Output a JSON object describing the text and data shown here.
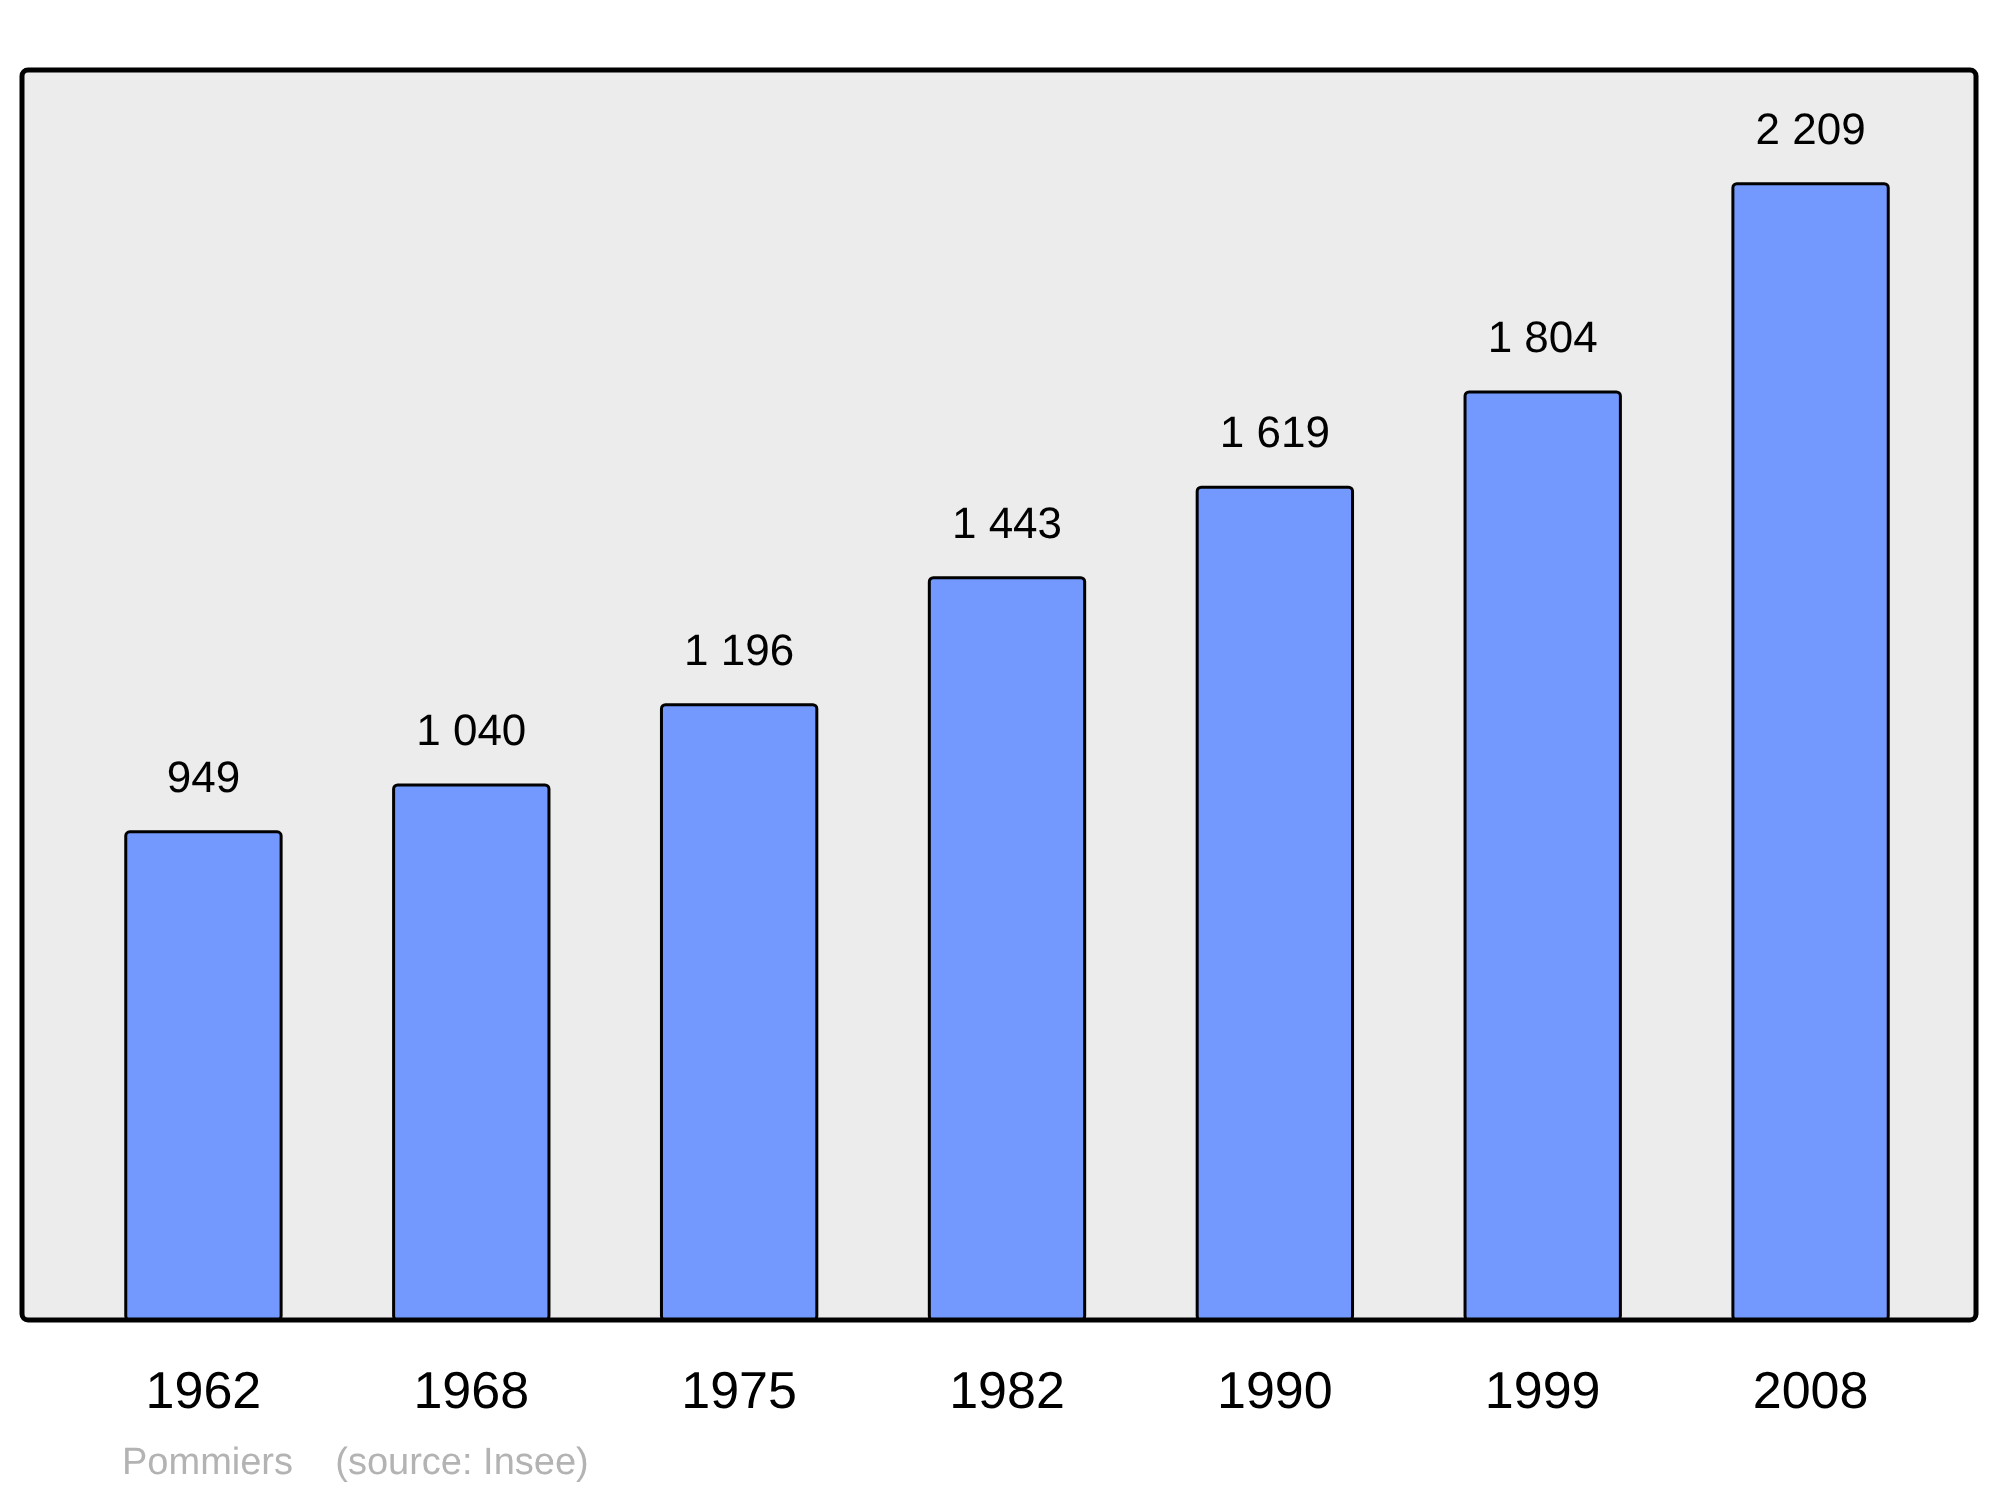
{
  "chart_data": {
    "type": "bar",
    "categories": [
      "1962",
      "1968",
      "1975",
      "1982",
      "1990",
      "1999",
      "2008"
    ],
    "values": [
      949,
      1040,
      1196,
      1443,
      1619,
      1804,
      2209
    ],
    "value_labels": [
      "949",
      "1 040",
      "1 196",
      "1 443",
      "1 619",
      "1 804",
      "2 209"
    ],
    "color": "#7399ff",
    "annotations": [
      "Pommiers    (source: Insee)"
    ]
  }
}
